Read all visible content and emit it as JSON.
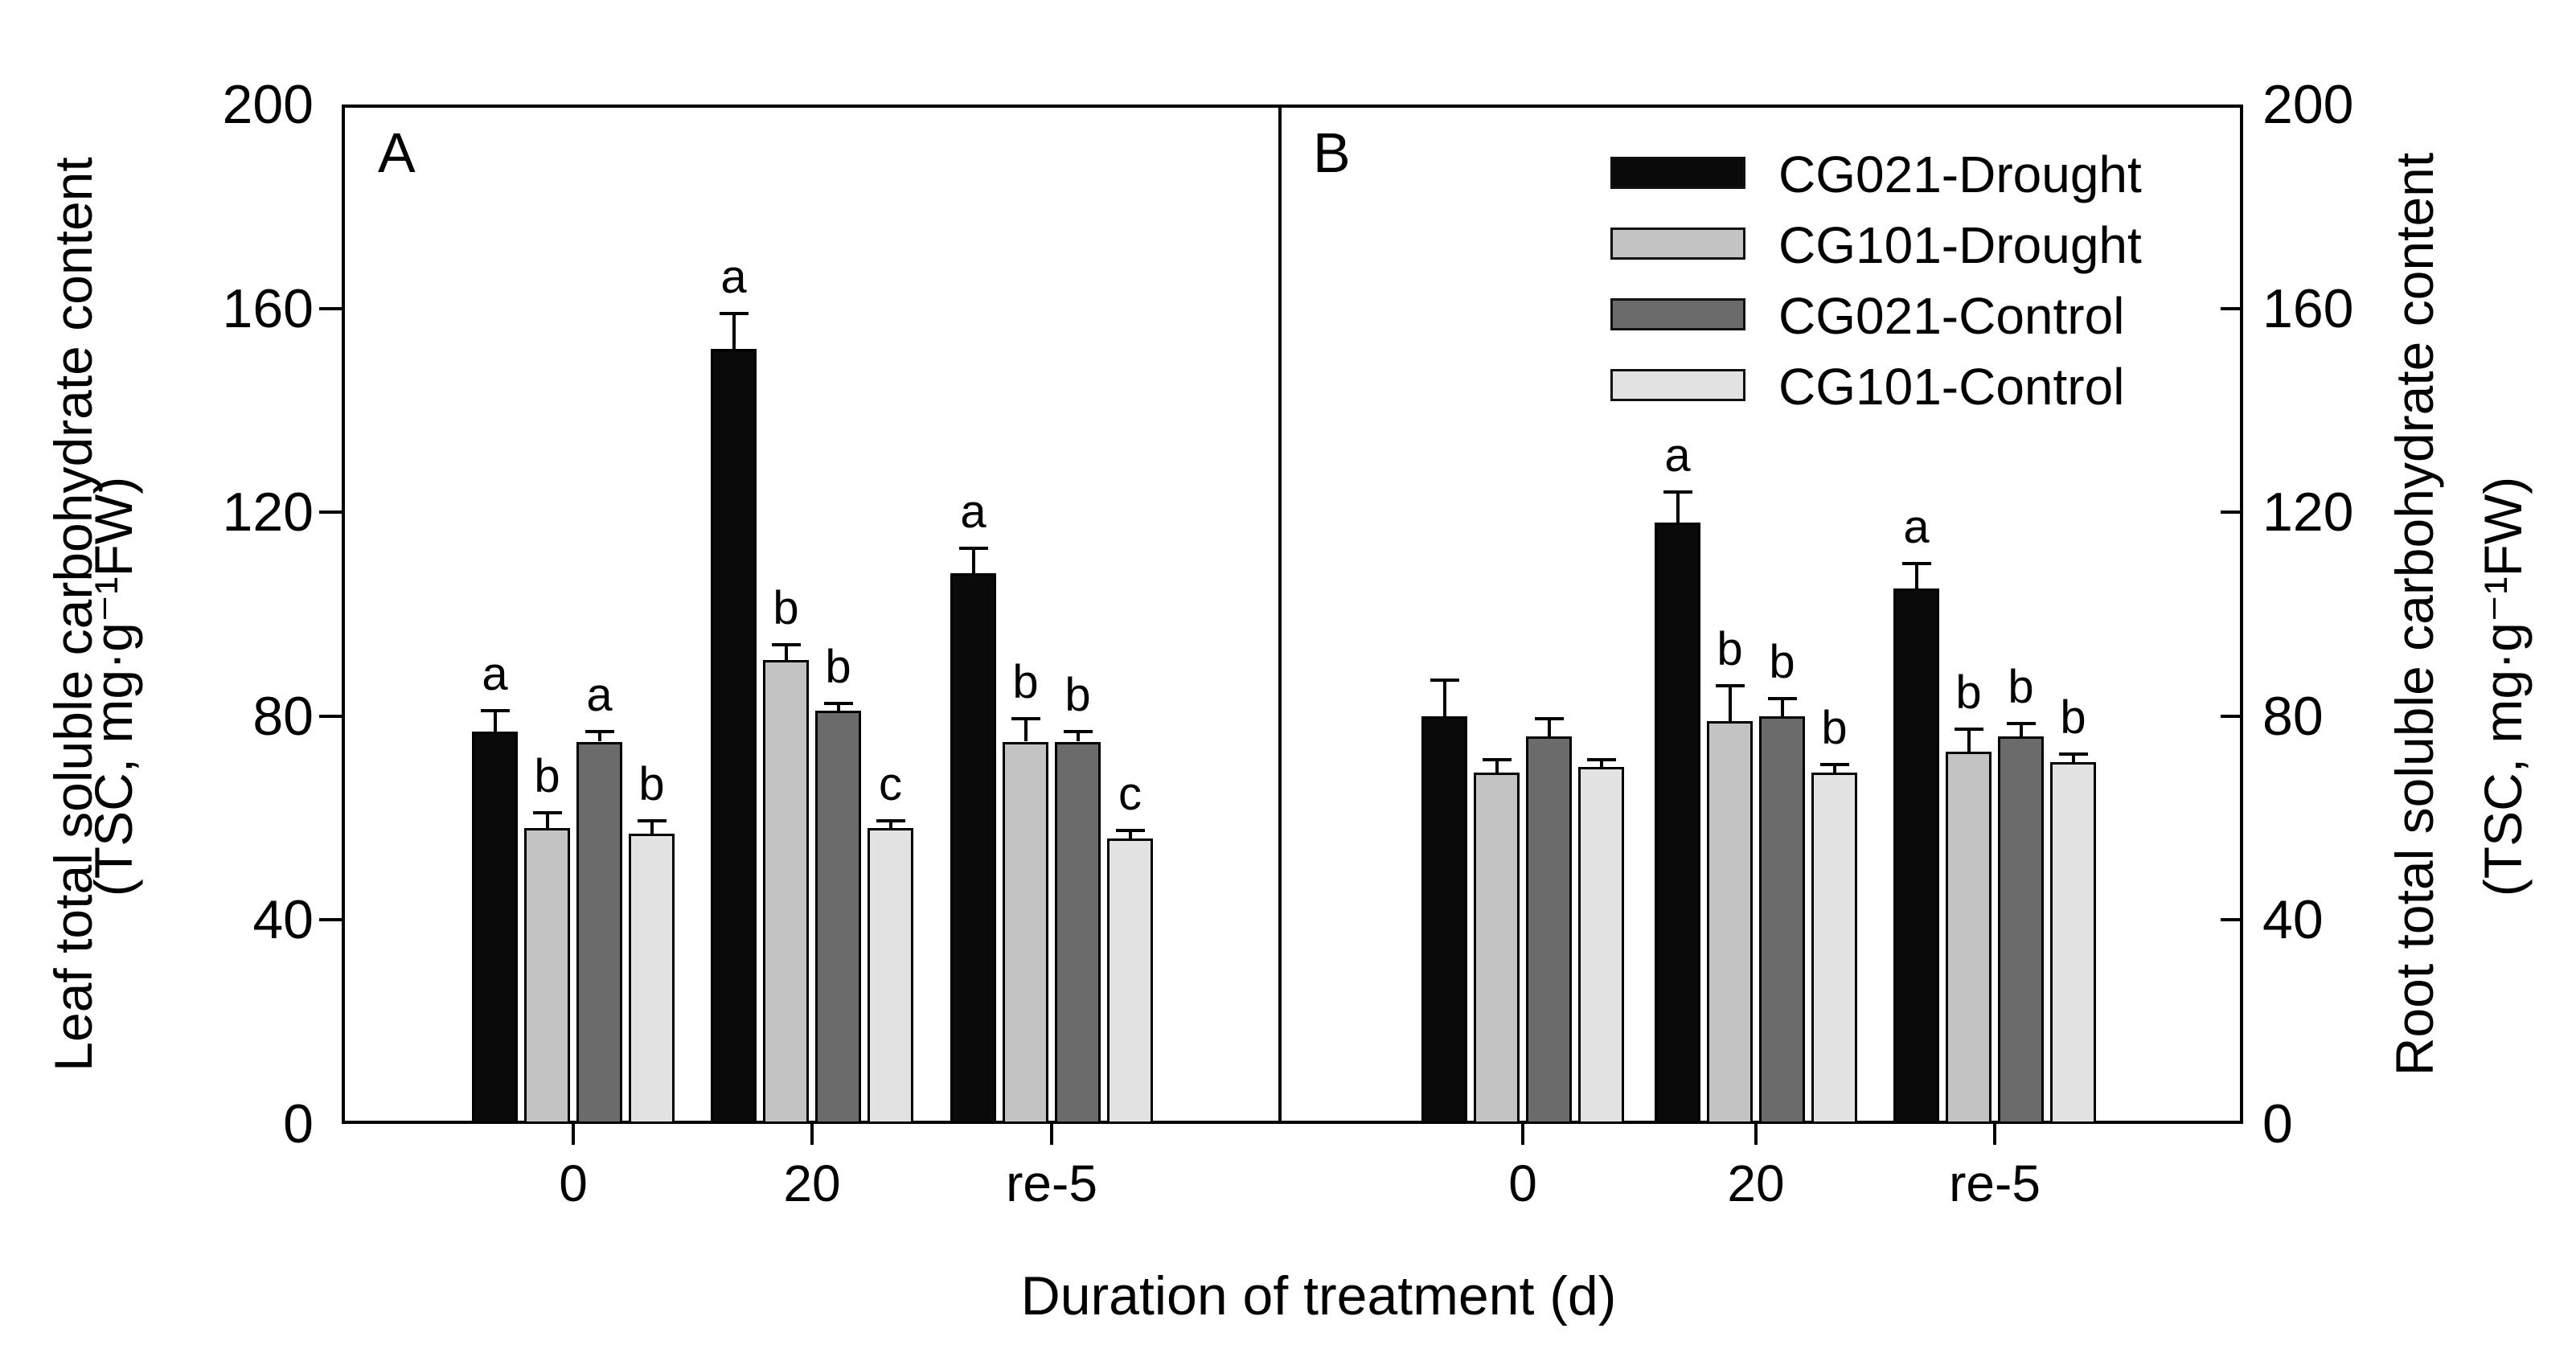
{
  "figure": {
    "panel_a_label": "A",
    "panel_b_label": "B",
    "x_axis_title": "Duration of treatment (d)",
    "left_y_title_line1": "Leaf total soluble carbohydrate content",
    "left_y_title_line2": "(TSC, mg·g⁻¹FW)",
    "right_y_title_line1": "Root total soluble carbohydrate content",
    "right_y_title_line2": "(TSC, mg·g⁻¹FW)"
  },
  "legend": {
    "items": [
      {
        "label": "CG021-Drought",
        "color": "#0a0a0a"
      },
      {
        "label": "CG101-Drought",
        "color": "#c3c3c3"
      },
      {
        "label": "CG021-Control",
        "color": "#6b6b6b"
      },
      {
        "label": "CG101-Control",
        "color": "#e2e2e2"
      }
    ]
  },
  "chart_data": [
    {
      "type": "bar",
      "panel": "A",
      "title": "Leaf total soluble carbohydrate content (TSC, mg·g⁻¹FW)",
      "xlabel": "Duration of treatment (d)",
      "ylabel": "Leaf total soluble carbohydrate content (TSC, mg·g⁻¹FW)",
      "categories": [
        "0",
        "20",
        "re-5"
      ],
      "ylim": [
        0,
        200
      ],
      "yticks": [
        0,
        40,
        80,
        120,
        160,
        200
      ],
      "grid": false,
      "series": [
        {
          "name": "CG021-Drought",
          "color": "#0a0a0a",
          "values": [
            77,
            152,
            108
          ],
          "errors": [
            4,
            7,
            5
          ],
          "letters": [
            "a",
            "a",
            "a"
          ]
        },
        {
          "name": "CG101-Drought",
          "color": "#c3c3c3",
          "values": [
            58,
            91,
            75
          ],
          "errors": [
            3,
            3,
            4.5
          ],
          "letters": [
            "b",
            "b",
            "b"
          ]
        },
        {
          "name": "CG021-Control",
          "color": "#6b6b6b",
          "values": [
            75,
            81,
            75
          ],
          "errors": [
            2,
            1.5,
            2
          ],
          "letters": [
            "a",
            "b",
            "b"
          ]
        },
        {
          "name": "CG101-Control",
          "color": "#e2e2e2",
          "values": [
            57,
            58,
            56
          ],
          "errors": [
            2.5,
            1.5,
            1.5
          ],
          "letters": [
            "b",
            "c",
            "c"
          ]
        }
      ]
    },
    {
      "type": "bar",
      "panel": "B",
      "title": "Root total soluble carbohydrate content (TSC, mg·g⁻¹FW)",
      "xlabel": "Duration of treatment (d)",
      "ylabel": "Root total soluble carbohydrate content (TSC, mg·g⁻¹FW)",
      "categories": [
        "0",
        "20",
        "re-5"
      ],
      "ylim": [
        0,
        200
      ],
      "yticks": [
        0,
        40,
        80,
        120,
        160,
        200
      ],
      "grid": false,
      "series": [
        {
          "name": "CG021-Drought",
          "color": "#0a0a0a",
          "values": [
            80,
            118,
            105
          ],
          "errors": [
            7,
            6,
            5
          ],
          "letters": [
            "",
            "a",
            "a"
          ]
        },
        {
          "name": "CG101-Drought",
          "color": "#c3c3c3",
          "values": [
            69,
            79,
            73
          ],
          "errors": [
            2.5,
            7,
            4.5
          ],
          "letters": [
            "",
            "b",
            "b"
          ]
        },
        {
          "name": "CG021-Control",
          "color": "#6b6b6b",
          "values": [
            76,
            80,
            76
          ],
          "errors": [
            3.5,
            3.5,
            2.5
          ],
          "letters": [
            "",
            "b",
            "b"
          ]
        },
        {
          "name": "CG101-Control",
          "color": "#e2e2e2",
          "values": [
            70,
            69,
            71
          ],
          "errors": [
            1.5,
            1.5,
            1.6
          ],
          "letters": [
            "",
            "b",
            "b"
          ]
        }
      ]
    }
  ]
}
